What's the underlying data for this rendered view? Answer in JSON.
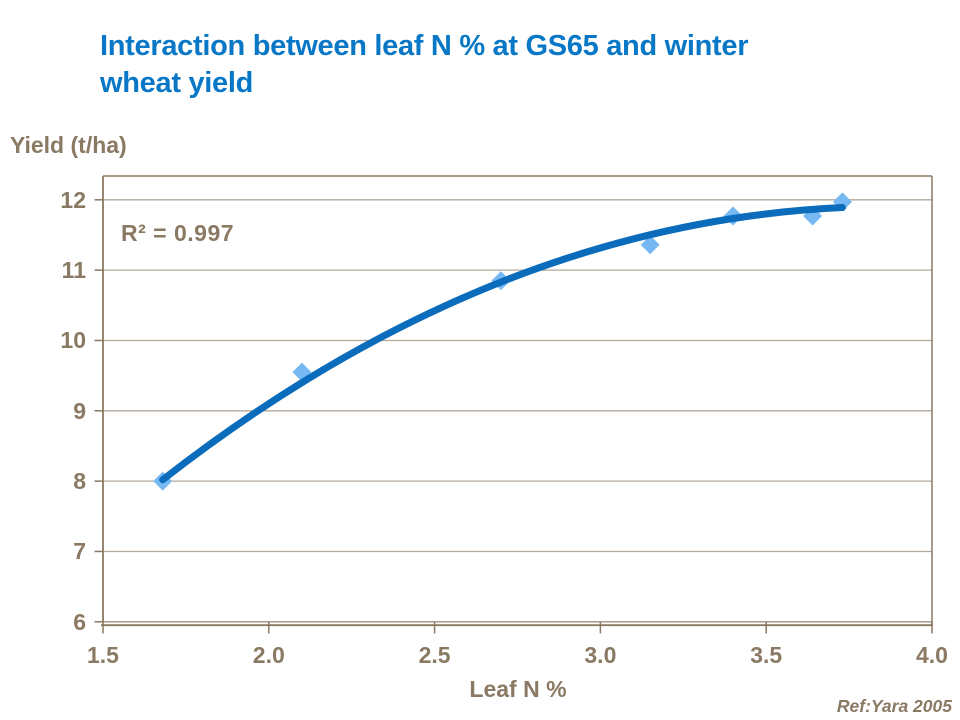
{
  "slide": {
    "title_lines": [
      "Interaction between leaf N % at GS65 and winter",
      "wheat yield"
    ],
    "reference": "Ref:Yara 2005"
  },
  "chart_data": {
    "type": "scatter",
    "title": "Interaction between leaf N % at GS65 and winter wheat yield",
    "xlabel": "Leaf N %",
    "ylabel": "Yield (t/ha)",
    "annotation": "R² = 0.997",
    "legend": "none",
    "grid": "horizontal-major",
    "xlim": [
      1.5,
      4.0
    ],
    "ylim": [
      6,
      12.35
    ],
    "x_ticks": {
      "values": [
        1.5,
        2.0,
        2.5,
        3.0,
        3.5,
        4.0
      ],
      "labels": [
        "1.5",
        "2.0",
        "2.5",
        "3.0",
        "3.5",
        "4.0"
      ]
    },
    "y_ticks": {
      "values": [
        12,
        11,
        10,
        9,
        8,
        7,
        6
      ],
      "labels": [
        "12",
        "11",
        "10",
        "9",
        "8",
        "7",
        "6"
      ]
    },
    "points": [
      [
        1.68,
        8.0
      ],
      [
        2.1,
        9.55
      ],
      [
        2.7,
        10.85
      ],
      [
        3.15,
        11.36
      ],
      [
        3.4,
        11.77
      ],
      [
        3.64,
        11.77
      ],
      [
        3.73,
        11.97
      ]
    ],
    "trendline": {
      "kind": "quadratic",
      "start": [
        1.68,
        8.02
      ],
      "control": [
        2.67,
        11.66
      ],
      "end": [
        3.73,
        11.89
      ],
      "r_squared": 0.997
    },
    "colors": {
      "title_blue": "#0878C6",
      "trendline_blue": "#0B6CBC",
      "marker_blue": "#76B8F2",
      "axis_brown": "#8A7963",
      "gridline": "#B2A89B"
    }
  }
}
